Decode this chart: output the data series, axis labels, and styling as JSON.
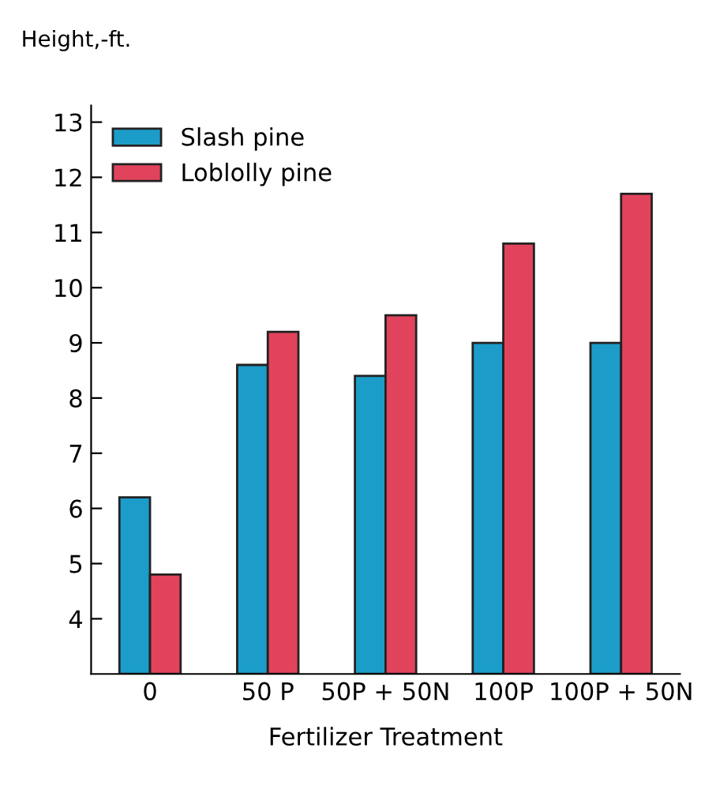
{
  "chart_data": {
    "type": "bar",
    "ylabel": "Height,-ft.",
    "xlabel": "Fertilizer Treatment",
    "categories": [
      "0",
      "50 P",
      "50P + 50N",
      "100P",
      "100P + 50N"
    ],
    "series": [
      {
        "name": "Slash pine",
        "color": "#1c9cc9",
        "values": [
          6.2,
          8.6,
          8.4,
          9.0,
          9.0
        ]
      },
      {
        "name": "Loblolly pine",
        "color": "#e2435c",
        "values": [
          4.8,
          9.2,
          9.5,
          10.8,
          11.7
        ]
      }
    ],
    "ylim": [
      3,
      13.3
    ],
    "yticks": [
      4,
      5,
      6,
      7,
      8,
      9,
      10,
      11,
      12,
      13
    ],
    "grid": false,
    "legend": "top left"
  }
}
